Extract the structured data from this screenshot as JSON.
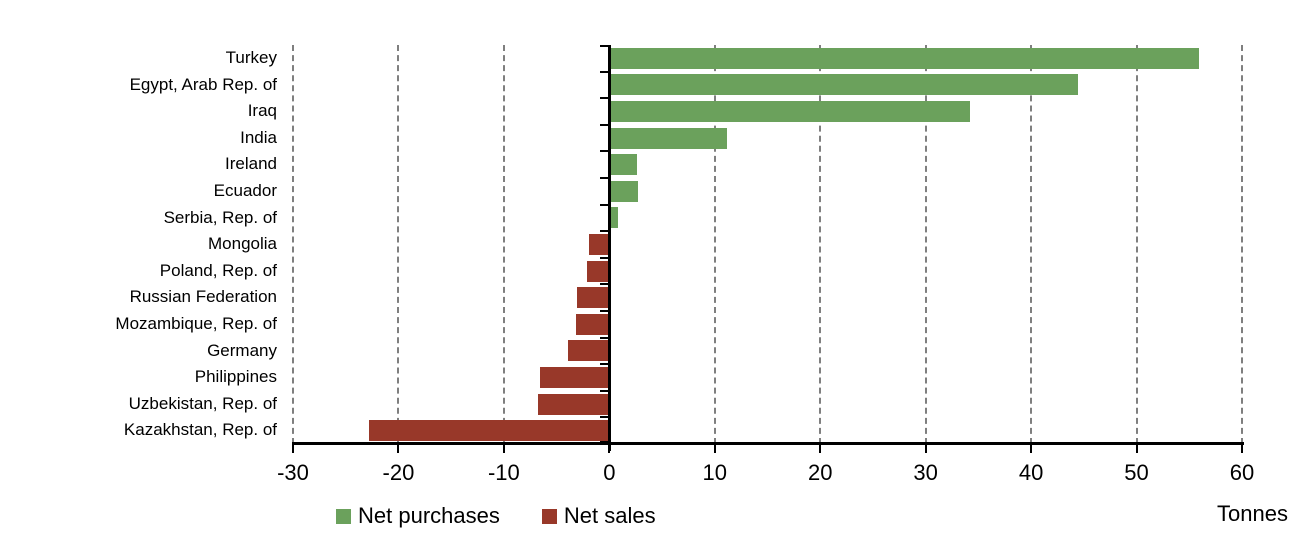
{
  "chart_data": {
    "type": "bar",
    "orientation": "horizontal",
    "title": "",
    "xlabel": "Tonnes",
    "xlim": [
      -30,
      60
    ],
    "x_ticks": [
      -30,
      -20,
      -10,
      0,
      10,
      20,
      30,
      40,
      50,
      60
    ],
    "grid": "vertical-dashed",
    "legend_position": "bottom",
    "categories": [
      "Turkey",
      "Egypt, Arab Rep. of",
      "Iraq",
      "India",
      "Ireland",
      "Ecuador",
      "Serbia, Rep. of",
      "Mongolia",
      "Poland, Rep. of",
      "Russian Federation",
      "Mozambique, Rep. of",
      "Germany",
      "Philippines",
      "Uzbekistan, Rep. of",
      "Kazakhstan, Rep. of"
    ],
    "values": [
      55.8,
      44.3,
      34.1,
      11.0,
      2.5,
      2.6,
      0.7,
      -1.9,
      -2.1,
      -3.1,
      -3.2,
      -3.9,
      -6.6,
      -6.8,
      -22.8
    ],
    "series": [
      {
        "name": "Net purchases",
        "color": "#6ba15c",
        "applies_to": "positive values"
      },
      {
        "name": "Net sales",
        "color": "#983829",
        "applies_to": "negative values"
      }
    ],
    "colors": {
      "positive_bar": "#6ba15c",
      "negative_bar": "#983829",
      "gridline": "#7f7f7f",
      "axis": "#000000",
      "text": "#000000",
      "background": "#ffffff"
    }
  }
}
